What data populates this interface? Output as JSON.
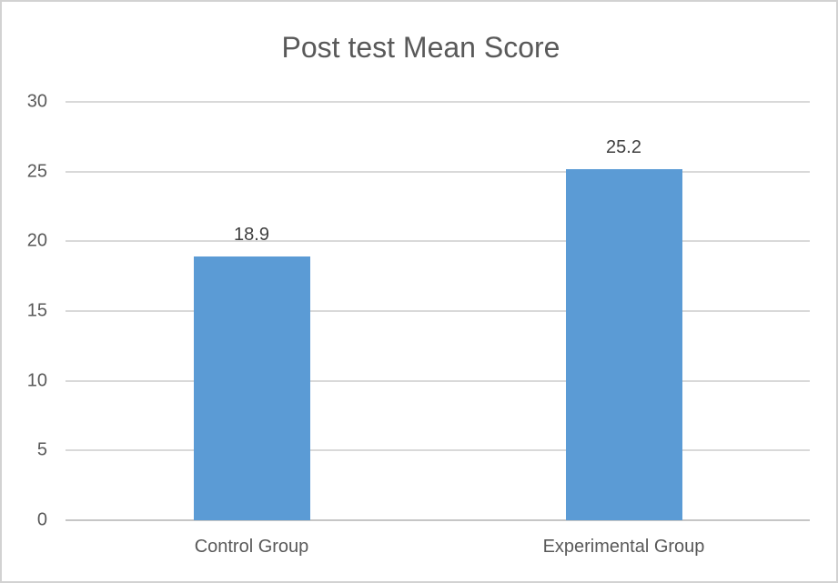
{
  "chart_data": {
    "type": "bar",
    "title": "Post test Mean Score",
    "categories": [
      "Control Group",
      "Experimental Group"
    ],
    "values": [
      18.9,
      25.2
    ],
    "data_labels": [
      "18.9",
      "25.2"
    ],
    "yticks": [
      0,
      5,
      10,
      15,
      20,
      25,
      30
    ],
    "ylim": [
      0,
      30
    ],
    "xlabel": "",
    "ylabel": "",
    "grid": true,
    "legend": "none",
    "colors": {
      "bar": "#5b9bd5",
      "title_text": "#595959",
      "axis_tick_text": "#595959",
      "data_label_text": "#404040",
      "gridline": "#d9d9d9",
      "zero_axis_line": "#c6c6c6",
      "frame_border": "#d2d2d2",
      "background": "#ffffff"
    }
  }
}
